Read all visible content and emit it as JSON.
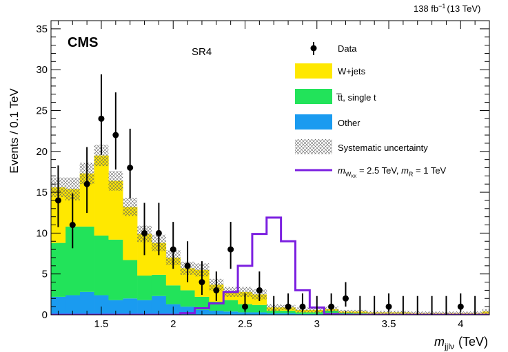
{
  "chart_data": {
    "type": "histogram",
    "lumi_label": "138 fb",
    "lumi_exp": "−1",
    "lumi_energy": "(13 TeV)",
    "experiment": "CMS",
    "region": "SR4",
    "ylabel": "Events / 0.1 TeV",
    "xlabel_main": "m",
    "xlabel_sub": "jjlν",
    "xlabel_unit": "(TeV)",
    "xlim": [
      1.15,
      4.2
    ],
    "ylim": [
      0,
      36
    ],
    "bin_edges": [
      1.15,
      1.25,
      1.35,
      1.45,
      1.55,
      1.65,
      1.75,
      1.85,
      1.95,
      2.05,
      2.15,
      2.25,
      2.35,
      2.45,
      2.55,
      2.65,
      2.75,
      2.85,
      2.95,
      3.05,
      3.15,
      3.25,
      3.35,
      3.45,
      3.55,
      3.65,
      3.75,
      3.85,
      3.95,
      4.05,
      4.15,
      4.2
    ],
    "x_ticks": [
      1.5,
      2,
      2.5,
      3,
      3.5,
      4
    ],
    "x_tick_labels": [
      "1.5",
      "2",
      "2.5",
      "3",
      "3.5",
      "4"
    ],
    "y_ticks": [
      0,
      5,
      10,
      15,
      20,
      25,
      30,
      35
    ],
    "y_tick_labels": [
      "0",
      "5",
      "10",
      "15",
      "20",
      "25",
      "30",
      "35"
    ],
    "stack": [
      {
        "name": "Other",
        "color": "#1a9bf0",
        "values": [
          2.2,
          2.4,
          2.8,
          2.4,
          1.8,
          2.0,
          1.8,
          2.3,
          1.3,
          1.0,
          0.6,
          0.5,
          0.4,
          0.3,
          0.3,
          0.2,
          0.2,
          0.1,
          0.1,
          0.1,
          0.1,
          0.05,
          0.05,
          0.05,
          0.05,
          0.05,
          0.05,
          0.05,
          0.05,
          0.05,
          0.05
        ]
      },
      {
        "name": "t̅t, single t",
        "color": "#22e35a",
        "values": [
          6.6,
          8.4,
          8.0,
          7.3,
          7.4,
          4.7,
          3.0,
          2.6,
          2.3,
          2.0,
          1.6,
          1.1,
          1.4,
          1.0,
          0.9,
          0.3,
          0.3,
          0.2,
          0.2,
          0.4,
          0.15,
          0.15,
          0.1,
          0.1,
          0.1,
          0.05,
          0.05,
          0.05,
          0.05,
          0.05,
          0.05
        ]
      },
      {
        "name": "W+jets",
        "color": "#ffe800",
        "values": [
          6.8,
          4.6,
          6.5,
          9.8,
          7.2,
          6.5,
          5.1,
          3.9,
          3.4,
          2.7,
          3.3,
          2.1,
          1.0,
          1.5,
          1.3,
          0.4,
          0.4,
          0.3,
          0.3,
          0.2,
          0.15,
          0.2,
          0.15,
          0.15,
          0.15,
          0.1,
          0.1,
          0.1,
          0.1,
          0.1,
          0.3
        ]
      }
    ],
    "systematic_band_halfwidth": [
      1.2,
      1.4,
      1.3,
      1.3,
      1.2,
      1.1,
      1.0,
      1.0,
      0.9,
      0.8,
      0.8,
      0.7,
      0.6,
      0.6,
      0.6,
      0.4,
      0.3,
      0.3,
      0.3,
      0.3,
      0.2,
      0.2,
      0.2,
      0.2,
      0.2,
      0.2,
      0.2,
      0.2,
      0.2,
      0.2,
      0.3
    ],
    "signal": {
      "name_prefix": "m",
      "name_sub": "W",
      "name_subsub": "KK",
      "name_mid": " = 2.5 TeV,  ",
      "name_m2": "m",
      "name_m2_sub": "R",
      "name_end": " = 1 TeV",
      "color": "#7b1fe0",
      "values": [
        0,
        0,
        0,
        0,
        0,
        0,
        0,
        0,
        0,
        0.2,
        0.8,
        1.4,
        2.8,
        6.0,
        9.9,
        11.9,
        9.0,
        3.0,
        0.9,
        0.1,
        0,
        0,
        0,
        0,
        0,
        0,
        0,
        0,
        0,
        0,
        0
      ]
    },
    "data": {
      "name": "Data",
      "x": [
        1.2,
        1.3,
        1.4,
        1.5,
        1.6,
        1.7,
        1.8,
        1.9,
        2.0,
        2.1,
        2.2,
        2.3,
        2.4,
        2.5,
        2.6,
        2.7,
        2.8,
        2.9,
        3.0,
        3.1,
        3.2,
        3.3,
        3.4,
        3.5,
        3.6,
        3.7,
        3.8,
        3.9,
        4.0,
        4.1
      ],
      "y": [
        14,
        11,
        16,
        24,
        22,
        18,
        10,
        10,
        8,
        6,
        4,
        3,
        8,
        1,
        3,
        0,
        1,
        1,
        0,
        1,
        2,
        0,
        0,
        1,
        0,
        0,
        0,
        0,
        1,
        0
      ]
    },
    "legend": {
      "data": "Data",
      "wjets": "W+jets",
      "ttbar": "t̅t, single t",
      "other": "Other",
      "syst": "Systematic uncertainty"
    }
  }
}
